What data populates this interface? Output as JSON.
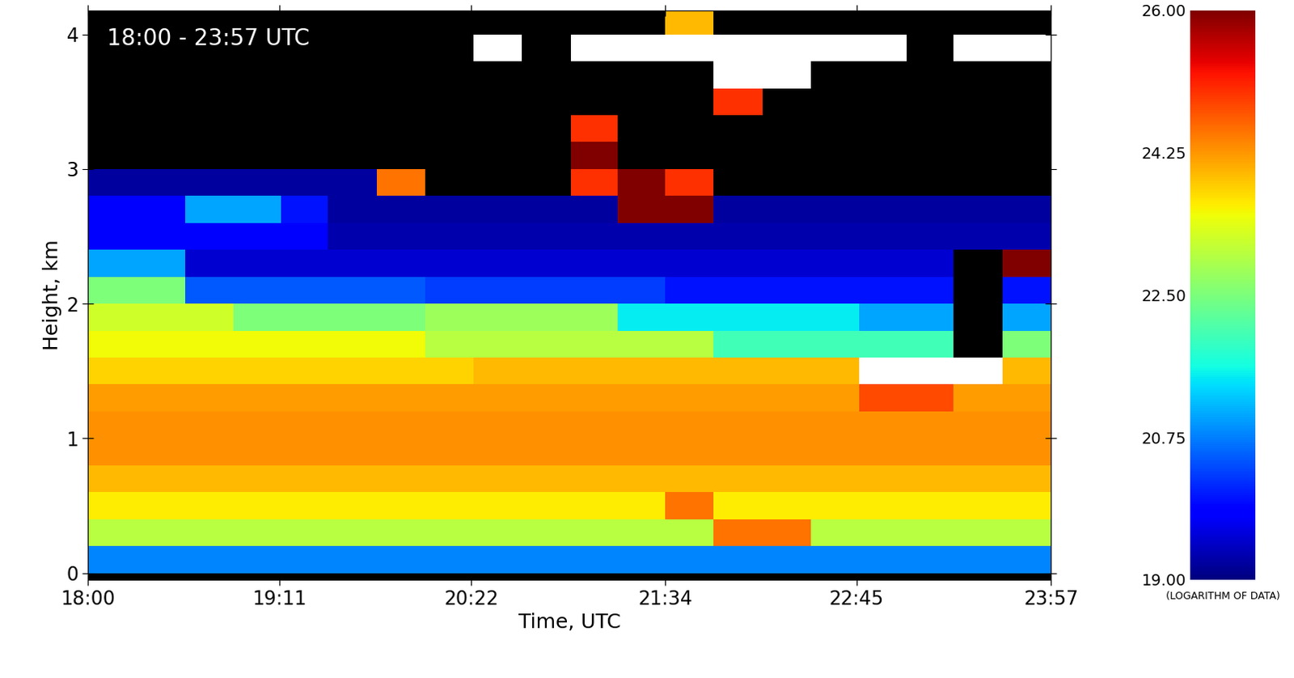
{
  "chart_data": {
    "type": "heatmap",
    "annotation": "18:00 - 23:57 UTC",
    "x_label": "Time, UTC",
    "y_label": "Height, km",
    "xlim": [
      0,
      357
    ],
    "xticks": [
      {
        "value": 0,
        "label": "18:00"
      },
      {
        "value": 71,
        "label": "19:11"
      },
      {
        "value": 142,
        "label": "20:22"
      },
      {
        "value": 214,
        "label": "21:34"
      },
      {
        "value": 285,
        "label": "22:45"
      },
      {
        "value": 357,
        "label": "23:57"
      }
    ],
    "ylim": [
      -0.05,
      4.18
    ],
    "yticks": [
      0,
      1,
      2,
      3,
      4
    ],
    "x": [
      9,
      27,
      45,
      63,
      80,
      98,
      116,
      134,
      152,
      170,
      188,
      205,
      223,
      241,
      259,
      277,
      295,
      312,
      330,
      348
    ],
    "y": [
      0.1,
      0.3,
      0.5,
      0.7,
      0.9,
      1.1,
      1.3,
      1.5,
      1.7,
      1.9,
      2.1,
      2.3,
      2.5,
      2.7,
      2.9,
      3.1,
      3.3,
      3.5,
      3.7,
      3.9,
      4.1
    ],
    "cells": [
      [
        20.8,
        20.8,
        20.8,
        20.8,
        20.8,
        20.8,
        20.8,
        20.8,
        20.8,
        20.8,
        20.8,
        20.8,
        20.8,
        20.8,
        20.8,
        20.8,
        20.8,
        20.8,
        20.8,
        20.8
      ],
      [
        23.0,
        23.0,
        23.0,
        23.0,
        23.0,
        23.0,
        23.0,
        23.0,
        23.0,
        23.0,
        23.0,
        23.0,
        23.0,
        24.5,
        24.5,
        23.0,
        23.0,
        23.0,
        23.0,
        23.0
      ],
      [
        23.6,
        23.6,
        23.6,
        23.6,
        23.6,
        23.6,
        23.6,
        23.6,
        23.6,
        23.6,
        23.6,
        23.6,
        24.5,
        23.6,
        23.6,
        23.6,
        23.6,
        23.6,
        23.6,
        23.6
      ],
      [
        24.0,
        24.0,
        24.0,
        24.0,
        24.0,
        24.0,
        24.0,
        24.0,
        24.0,
        24.0,
        24.0,
        24.0,
        24.0,
        24.0,
        24.0,
        24.0,
        24.0,
        24.0,
        24.0,
        24.0
      ],
      [
        24.3,
        24.3,
        24.3,
        24.3,
        24.3,
        24.3,
        24.3,
        24.3,
        24.3,
        24.3,
        24.3,
        24.3,
        24.3,
        24.3,
        24.3,
        24.3,
        24.3,
        24.3,
        24.3,
        24.3
      ],
      [
        24.3,
        24.3,
        24.3,
        24.3,
        24.3,
        24.3,
        24.3,
        24.3,
        24.3,
        24.3,
        24.3,
        24.3,
        24.3,
        24.3,
        24.3,
        24.3,
        24.3,
        24.3,
        24.3,
        24.3
      ],
      [
        24.2,
        24.2,
        24.2,
        24.2,
        24.2,
        24.2,
        24.2,
        24.2,
        24.2,
        24.2,
        24.2,
        24.2,
        24.2,
        24.2,
        24.2,
        24.2,
        24.8,
        24.8,
        24.2,
        24.2
      ],
      [
        23.8,
        23.8,
        23.8,
        23.8,
        23.8,
        23.8,
        23.8,
        23.8,
        24.0,
        24.0,
        24.0,
        24.0,
        24.0,
        24.0,
        24.0,
        24.0,
        26.5,
        26.5,
        26.5,
        24.0
      ],
      [
        23.5,
        23.5,
        23.5,
        23.5,
        23.5,
        23.5,
        23.5,
        23.0,
        23.0,
        23.0,
        23.0,
        23.0,
        23.0,
        22.0,
        22.0,
        22.0,
        22.0,
        22.0,
        18.5,
        22.5
      ],
      [
        23.2,
        23.2,
        23.2,
        22.5,
        22.5,
        22.5,
        22.5,
        22.8,
        22.8,
        22.8,
        22.8,
        21.5,
        21.5,
        21.5,
        21.5,
        21.5,
        21.0,
        21.0,
        18.5,
        21.0
      ],
      [
        22.5,
        22.5,
        20.5,
        20.5,
        20.5,
        20.5,
        20.5,
        20.3,
        20.3,
        20.3,
        20.3,
        20.3,
        20.0,
        20.0,
        20.0,
        20.0,
        20.0,
        20.0,
        18.5,
        20.0
      ],
      [
        21.0,
        21.0,
        19.5,
        19.5,
        19.5,
        19.5,
        19.5,
        19.5,
        19.5,
        19.5,
        19.5,
        19.5,
        19.5,
        19.5,
        19.5,
        19.5,
        19.5,
        19.5,
        18.5,
        26.0
      ],
      [
        19.8,
        19.8,
        19.8,
        19.8,
        19.8,
        19.3,
        19.3,
        19.3,
        19.3,
        19.3,
        19.3,
        19.3,
        19.3,
        19.3,
        19.3,
        19.3,
        19.3,
        19.3,
        19.3,
        19.3
      ],
      [
        19.8,
        19.8,
        21.0,
        21.0,
        20.0,
        19.2,
        19.2,
        19.2,
        19.2,
        19.2,
        19.2,
        26.0,
        26.0,
        19.2,
        19.2,
        19.2,
        19.2,
        19.2,
        19.2,
        19.2
      ],
      [
        19.2,
        19.2,
        19.2,
        19.2,
        19.2,
        19.2,
        24.5,
        18.5,
        18.5,
        18.5,
        25.0,
        26.0,
        25.0,
        18.5,
        18.5,
        18.5,
        18.5,
        18.5,
        18.5,
        18.5
      ],
      [
        18.5,
        18.5,
        18.5,
        18.5,
        18.5,
        18.5,
        18.5,
        18.5,
        18.5,
        18.5,
        26.0,
        18.5,
        18.5,
        18.5,
        18.5,
        18.5,
        18.5,
        18.5,
        18.5,
        18.5
      ],
      [
        18.5,
        18.5,
        18.5,
        18.5,
        18.5,
        18.5,
        18.5,
        18.5,
        18.5,
        18.5,
        25.0,
        18.5,
        18.5,
        18.5,
        18.5,
        18.5,
        18.5,
        18.5,
        18.5,
        18.5
      ],
      [
        18.5,
        18.5,
        18.5,
        18.5,
        18.5,
        18.5,
        18.5,
        18.5,
        18.5,
        18.5,
        18.5,
        18.5,
        18.5,
        25.0,
        18.5,
        18.5,
        18.5,
        18.5,
        18.5,
        18.5
      ],
      [
        18.5,
        18.5,
        18.5,
        18.5,
        18.5,
        18.5,
        18.5,
        18.5,
        18.5,
        18.5,
        18.5,
        18.5,
        18.5,
        26.5,
        26.5,
        18.5,
        18.5,
        18.5,
        18.5,
        18.5
      ],
      [
        18.5,
        18.5,
        18.5,
        18.5,
        18.5,
        18.5,
        18.5,
        18.5,
        26.5,
        18.5,
        27.0,
        27.0,
        27.0,
        27.0,
        27.0,
        27.0,
        27.0,
        18.5,
        27.0,
        27.0
      ],
      [
        18.5,
        18.5,
        18.5,
        18.5,
        18.5,
        18.5,
        18.5,
        18.5,
        18.5,
        18.5,
        18.5,
        18.5,
        24.0,
        18.5,
        18.5,
        18.5,
        18.5,
        18.5,
        18.5,
        18.5
      ]
    ],
    "colorbar": {
      "range": [
        19,
        26
      ],
      "ticks": [
        {
          "value": 19,
          "label": "19.00"
        },
        {
          "value": 20.75,
          "label": "20.75"
        },
        {
          "value": 22.5,
          "label": "22.50"
        },
        {
          "value": 24.25,
          "label": "24.25"
        },
        {
          "value": 26,
          "label": "26.00"
        }
      ],
      "label": "(LOGARITHM OF DATA)"
    }
  }
}
